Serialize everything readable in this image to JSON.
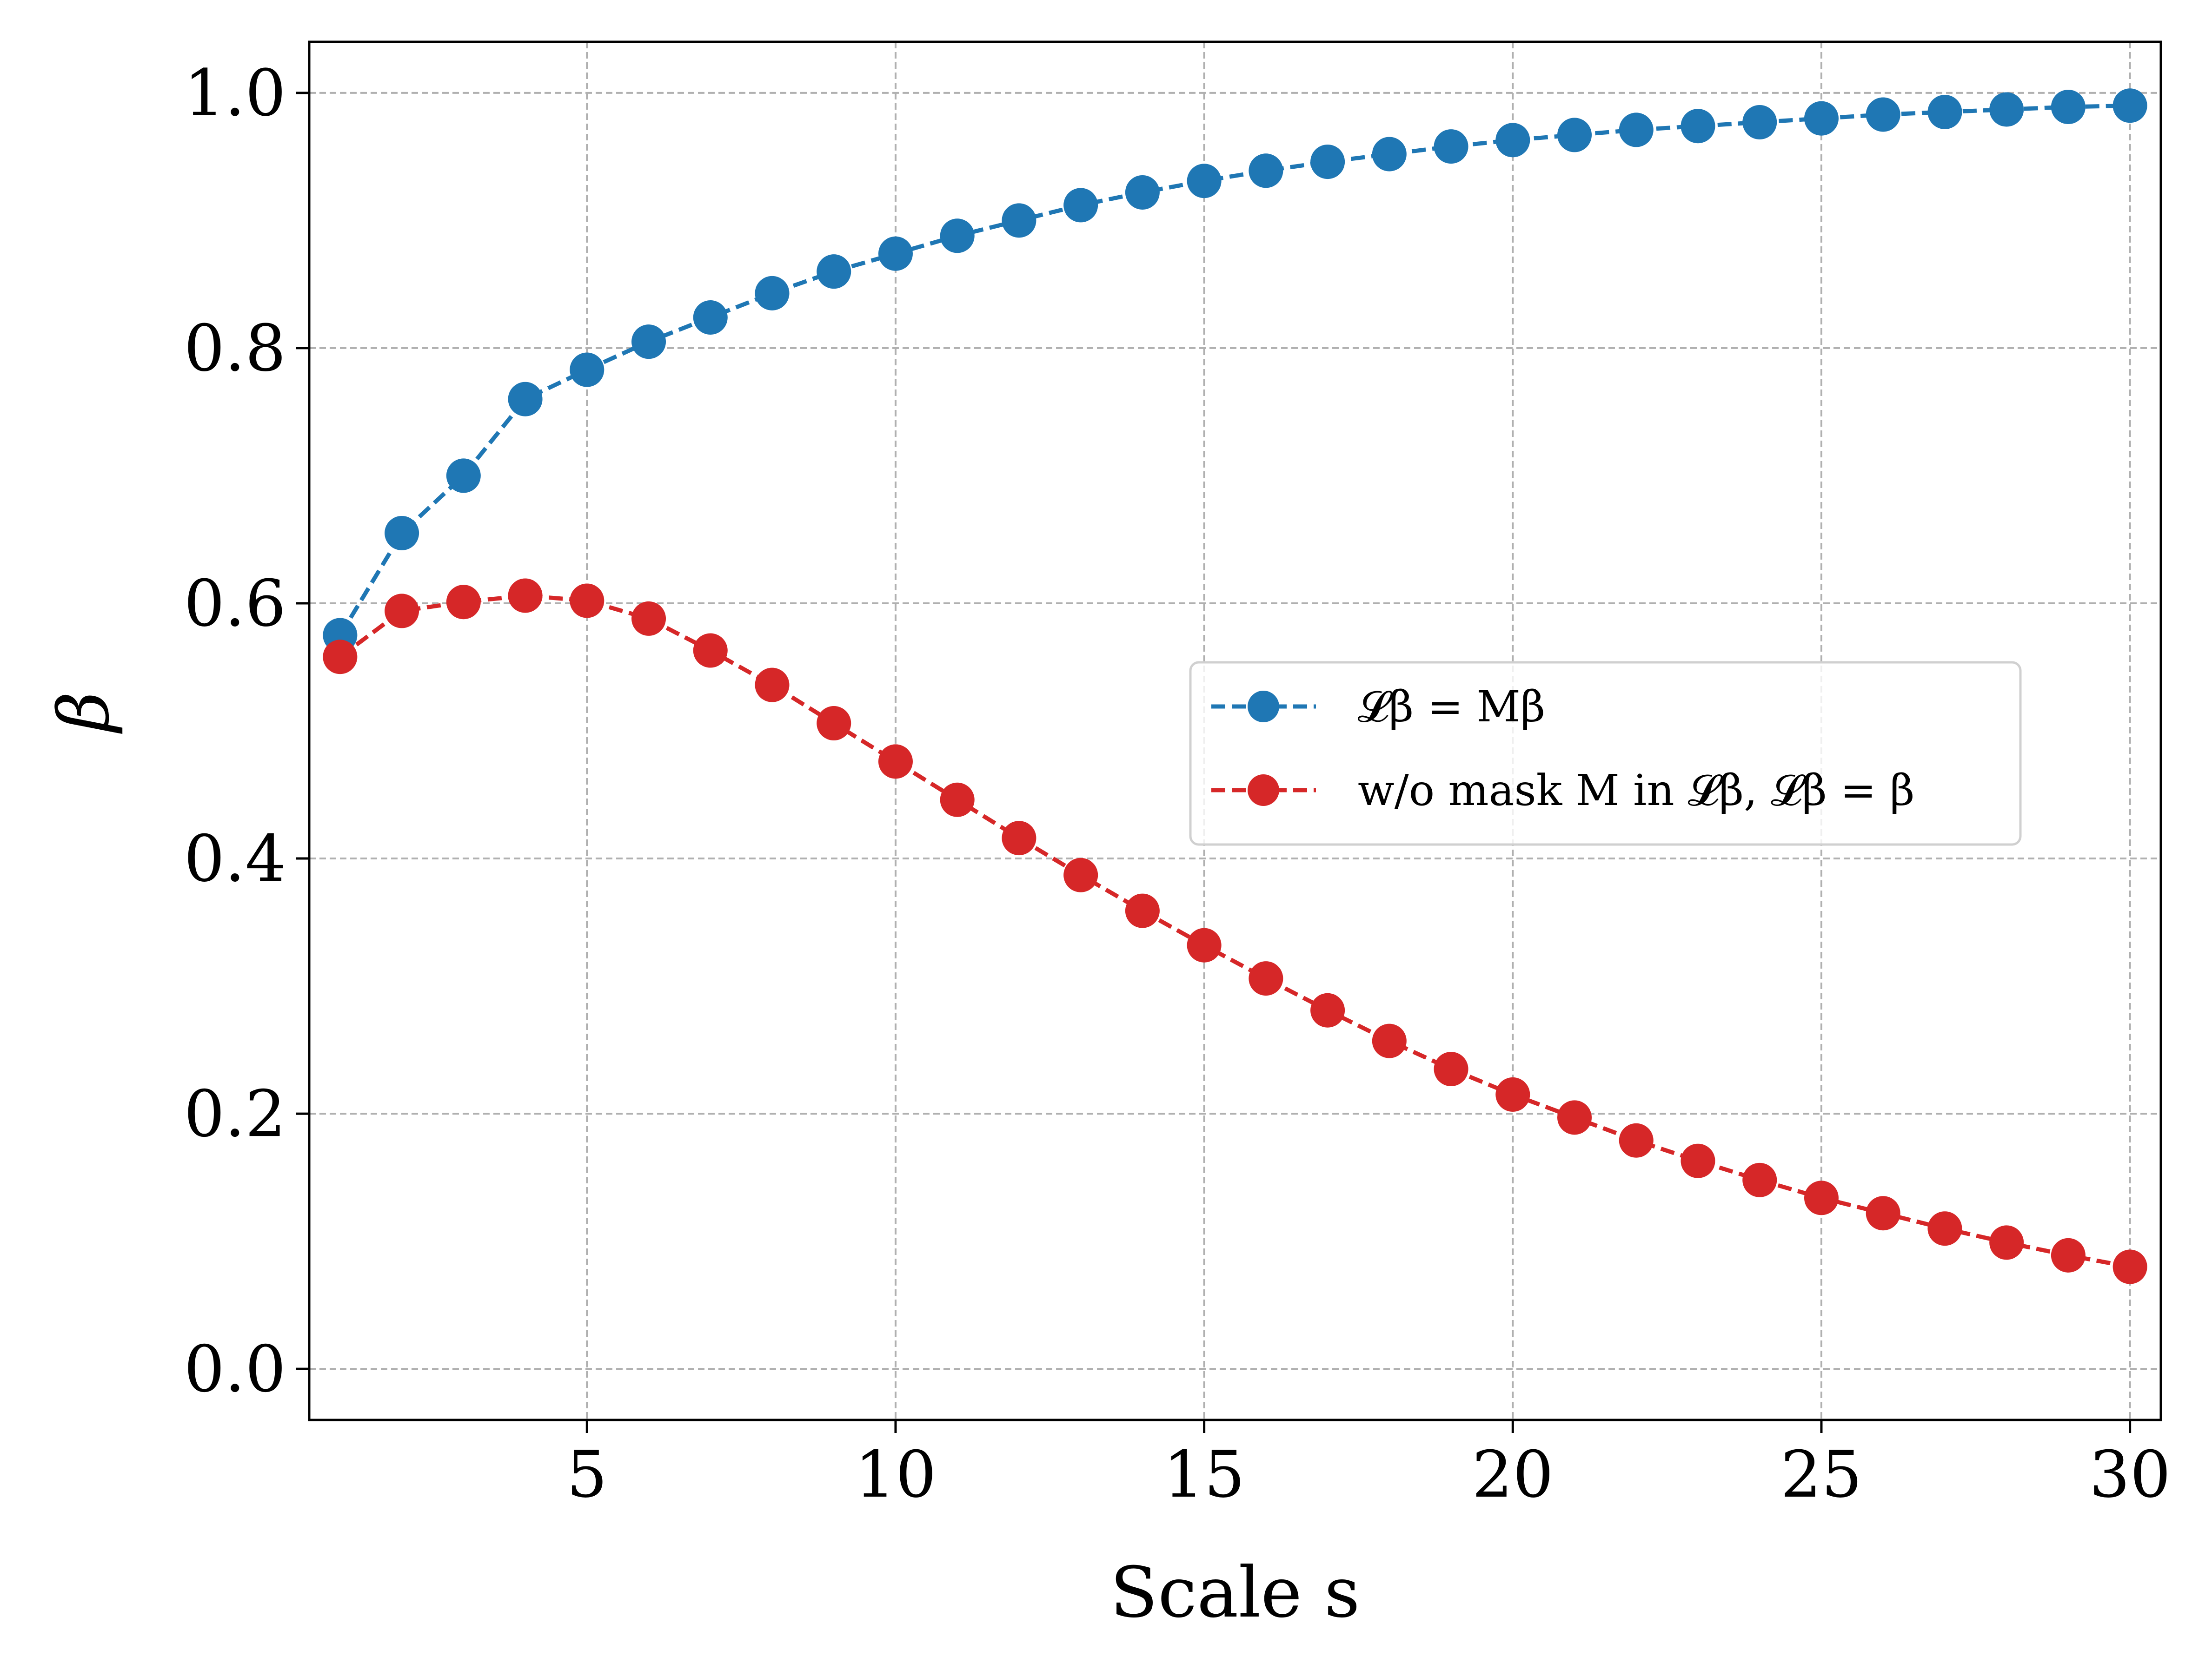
{
  "chart_data": {
    "type": "line",
    "xlabel": "Scale s",
    "ylabel": "β",
    "xlim": [
      0.5,
      30.5
    ],
    "ylim": [
      -0.04,
      1.04
    ],
    "grid": true,
    "legend_position": "center-right",
    "x_ticks": [
      5,
      10,
      15,
      20,
      25,
      30
    ],
    "x_tick_labels": [
      "5",
      "10",
      "15",
      "20",
      "25",
      "30"
    ],
    "y_ticks": [
      0.0,
      0.2,
      0.4,
      0.6,
      0.8,
      1.0
    ],
    "y_tick_labels": [
      "0.0",
      "0.2",
      "0.4",
      "0.6",
      "0.8",
      "1.0"
    ],
    "x": [
      1,
      2,
      3,
      4,
      5,
      6,
      7,
      8,
      9,
      10,
      11,
      12,
      13,
      14,
      15,
      16,
      17,
      18,
      19,
      20,
      21,
      22,
      23,
      24,
      25,
      26,
      27,
      28,
      29,
      30
    ],
    "series": [
      {
        "name": "ℒ_β = Mβ",
        "legend_label": "𝓛β = Mβ",
        "color": "#1f77b4",
        "values": [
          0.575,
          0.655,
          0.7,
          0.76,
          0.783,
          0.805,
          0.824,
          0.843,
          0.86,
          0.874,
          0.888,
          0.9,
          0.912,
          0.922,
          0.931,
          0.939,
          0.946,
          0.952,
          0.958,
          0.963,
          0.967,
          0.971,
          0.974,
          0.977,
          0.98,
          0.983,
          0.985,
          0.987,
          0.989,
          0.99
        ]
      },
      {
        "name": "w/o mask M in ℒ_β, ℒ_β = β",
        "legend_label": "w/o mask M in 𝓛β, 𝓛β = β",
        "color": "#d62728",
        "values": [
          0.558,
          0.594,
          0.601,
          0.606,
          0.602,
          0.588,
          0.563,
          0.536,
          0.506,
          0.476,
          0.446,
          0.416,
          0.387,
          0.359,
          0.332,
          0.306,
          0.281,
          0.257,
          0.235,
          0.215,
          0.197,
          0.179,
          0.163,
          0.148,
          0.134,
          0.122,
          0.11,
          0.099,
          0.089,
          0.08
        ]
      }
    ]
  }
}
